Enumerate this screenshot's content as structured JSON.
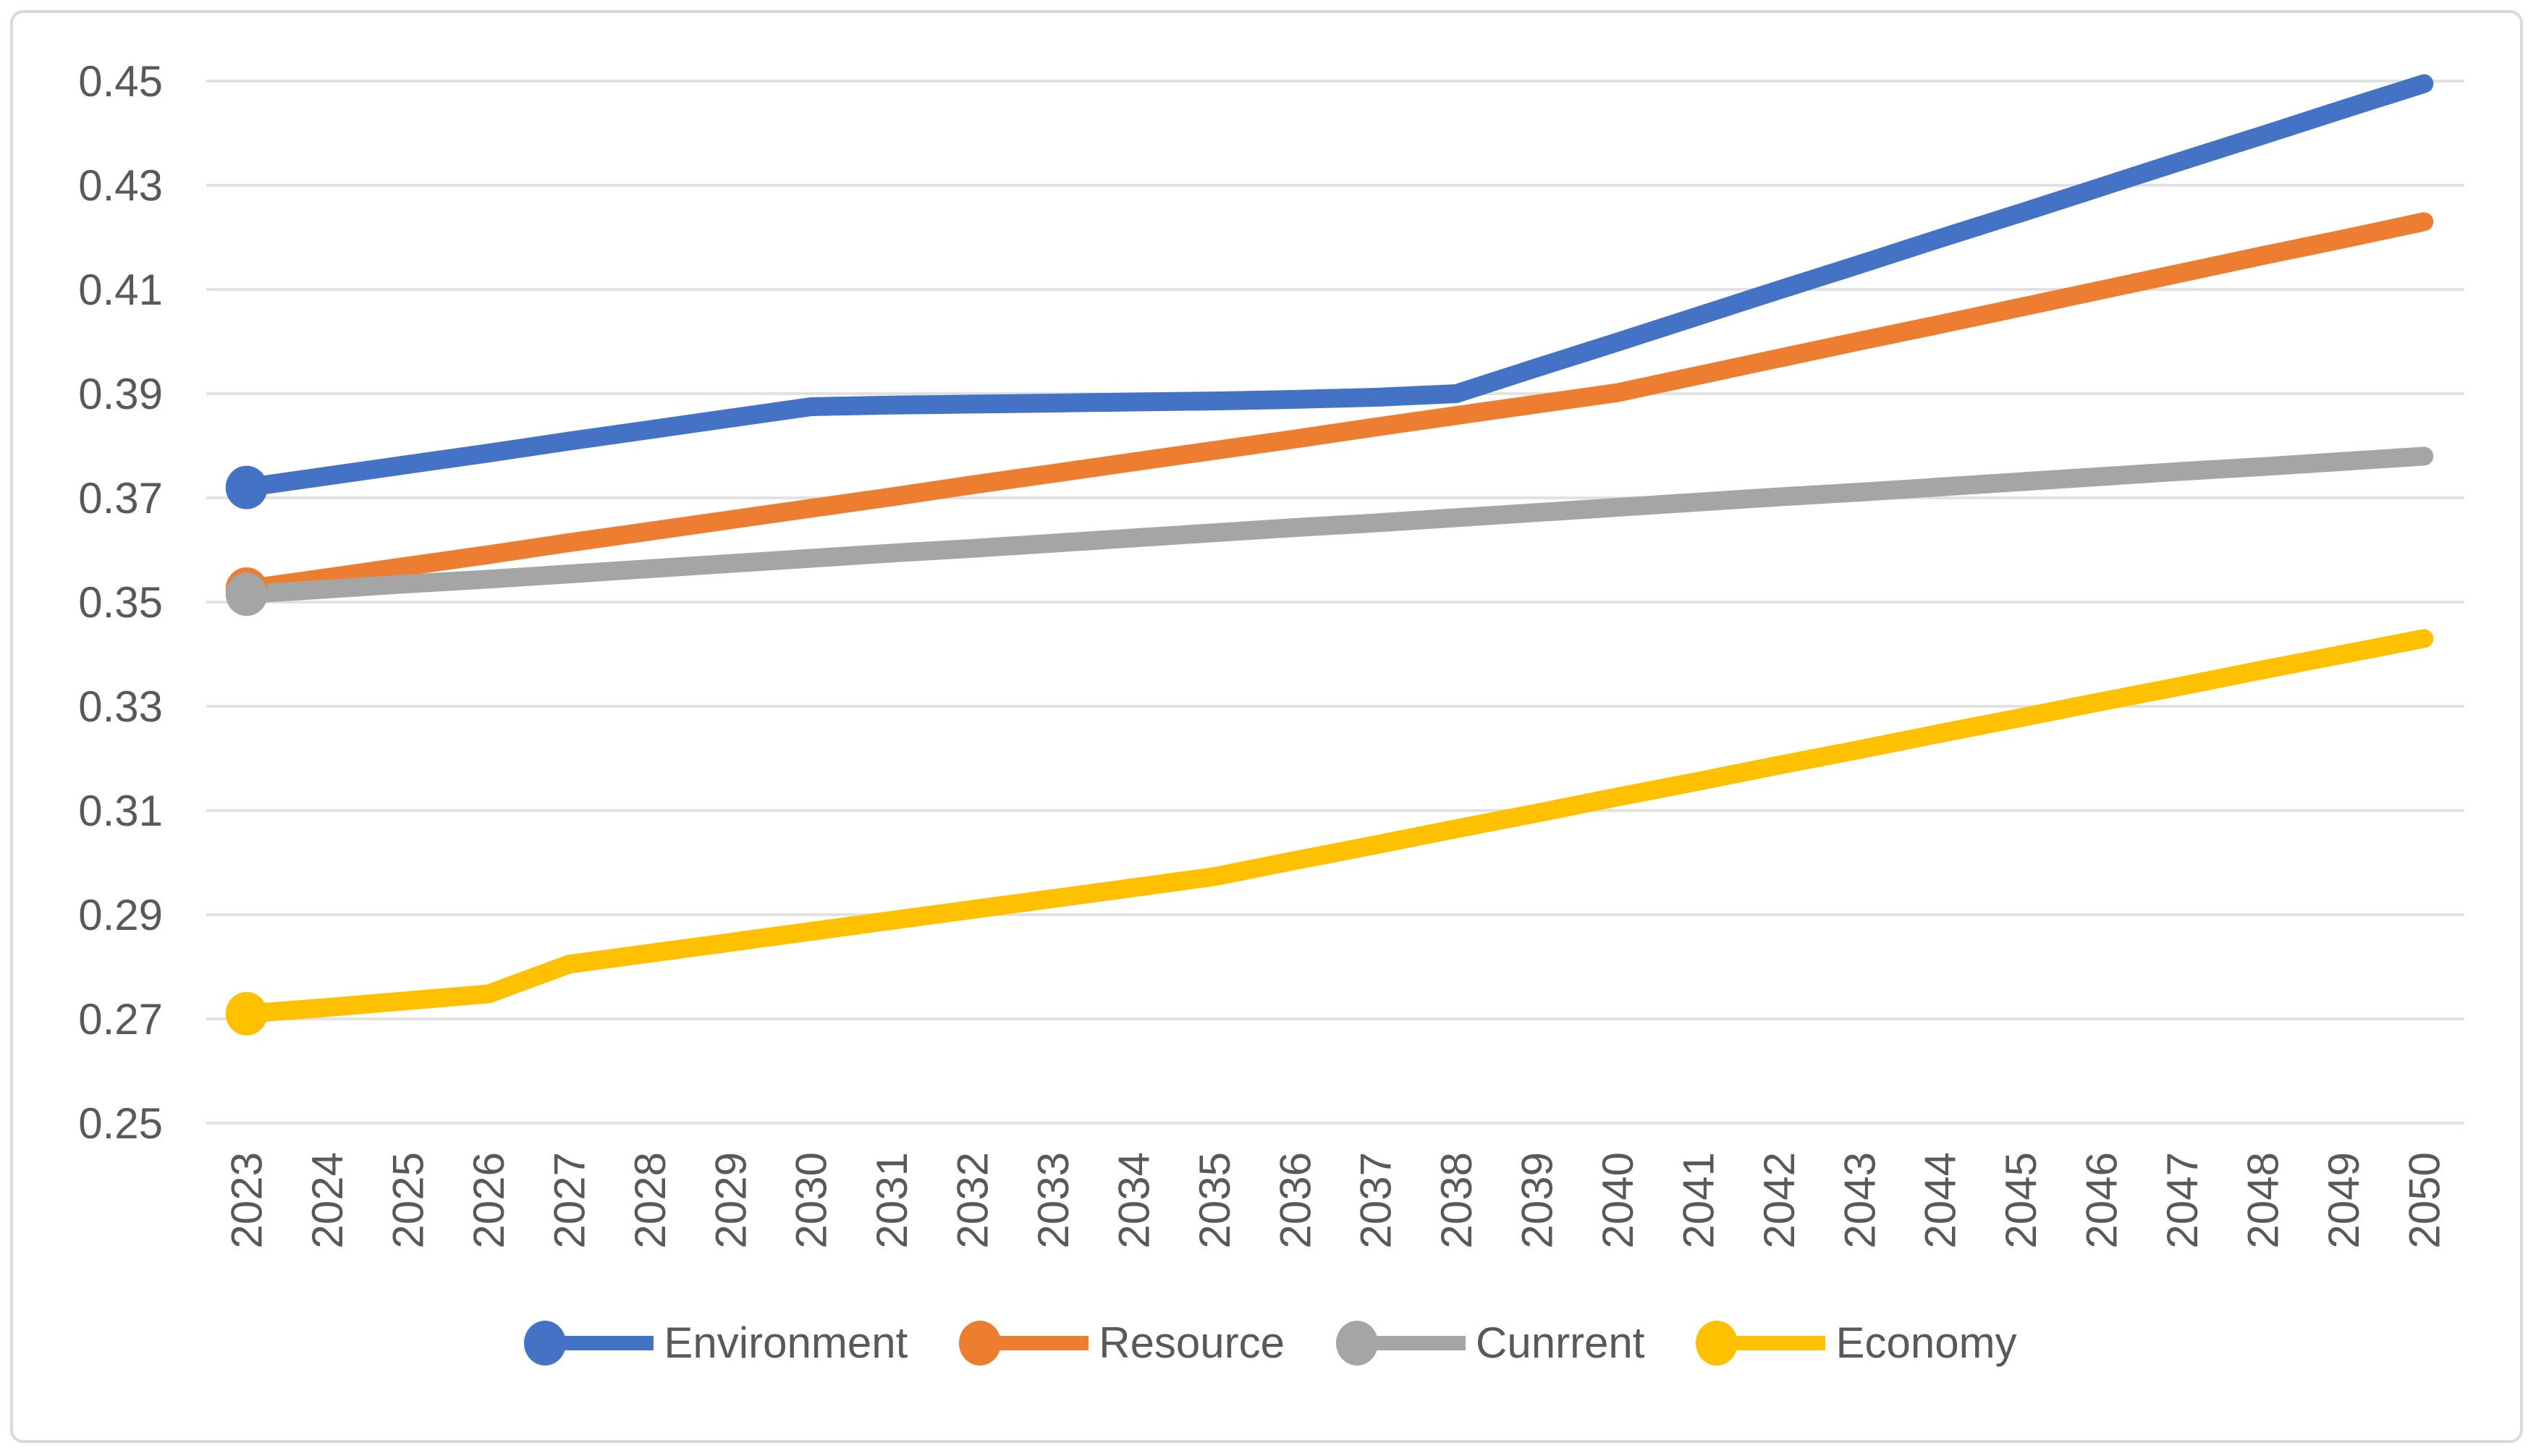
{
  "figure": {
    "background": "#FFFFFF",
    "border_color": "#D9D9D9"
  },
  "chart_data": {
    "type": "line",
    "title": "",
    "xlabel": "",
    "ylabel": "",
    "grid": "horizontal",
    "legend_position": "bottom",
    "text_color": "#595959",
    "gridline_color": "#E2E2E2",
    "x": [
      "2023",
      "2024",
      "2025",
      "2026",
      "2027",
      "2028",
      "2029",
      "2030",
      "2031",
      "2032",
      "2033",
      "2034",
      "2035",
      "2036",
      "2037",
      "2038",
      "2039",
      "2040",
      "2041",
      "2042",
      "2043",
      "2044",
      "2045",
      "2046",
      "2047",
      "2048",
      "2049",
      "2050"
    ],
    "y_axis": {
      "min": 0.25,
      "max": 0.45,
      "tick_step": 0.02,
      "tick_labels": [
        "0.45",
        "0.43",
        "0.41",
        "0.39",
        "0.37",
        "0.35",
        "0.33",
        "0.31",
        "0.29",
        "0.27",
        "0.25"
      ]
    },
    "series": [
      {
        "name": "Environment",
        "color": "#4472C4",
        "marker_on_first_point": true,
        "values": [
          0.372,
          0.3742,
          0.3764,
          0.3786,
          0.3809,
          0.3831,
          0.3853,
          0.3875,
          0.3878,
          0.388,
          0.3882,
          0.3884,
          0.3886,
          0.3889,
          0.3893,
          0.39,
          0.395,
          0.3999,
          0.4049,
          0.4099,
          0.4148,
          0.4198,
          0.4247,
          0.4297,
          0.4347,
          0.4396,
          0.4446,
          0.4495
        ]
      },
      {
        "name": "Resource",
        "color": "#ED7D31",
        "marker_on_first_point": true,
        "values": [
          0.3525,
          0.3547,
          0.3569,
          0.3591,
          0.3614,
          0.3636,
          0.3658,
          0.368,
          0.3702,
          0.3725,
          0.3747,
          0.3769,
          0.3791,
          0.3813,
          0.3836,
          0.3858,
          0.388,
          0.3902,
          0.3935,
          0.3968,
          0.4001,
          0.4033,
          0.4066,
          0.4099,
          0.4132,
          0.4165,
          0.4197,
          0.423
        ]
      },
      {
        "name": "Cunrrent",
        "color": "#A5A5A5",
        "marker_on_first_point": true,
        "values": [
          0.3515,
          0.3525,
          0.3535,
          0.3544,
          0.3554,
          0.3564,
          0.3574,
          0.3584,
          0.3594,
          0.3603,
          0.3613,
          0.3623,
          0.3633,
          0.3643,
          0.3652,
          0.3662,
          0.3672,
          0.3682,
          0.3692,
          0.3702,
          0.3711,
          0.3721,
          0.3731,
          0.3741,
          0.3751,
          0.376,
          0.377,
          0.378
        ]
      },
      {
        "name": "Economy",
        "color": "#FFC000",
        "marker_on_first_point": true,
        "values": [
          0.271,
          0.2722,
          0.2735,
          0.2748,
          0.2805,
          0.2826,
          0.2847,
          0.2868,
          0.2889,
          0.291,
          0.2931,
          0.2952,
          0.2973,
          0.3004,
          0.3034,
          0.3065,
          0.3095,
          0.3126,
          0.3156,
          0.3187,
          0.3217,
          0.3248,
          0.3278,
          0.3309,
          0.3339,
          0.337,
          0.34,
          0.343
        ]
      }
    ]
  }
}
